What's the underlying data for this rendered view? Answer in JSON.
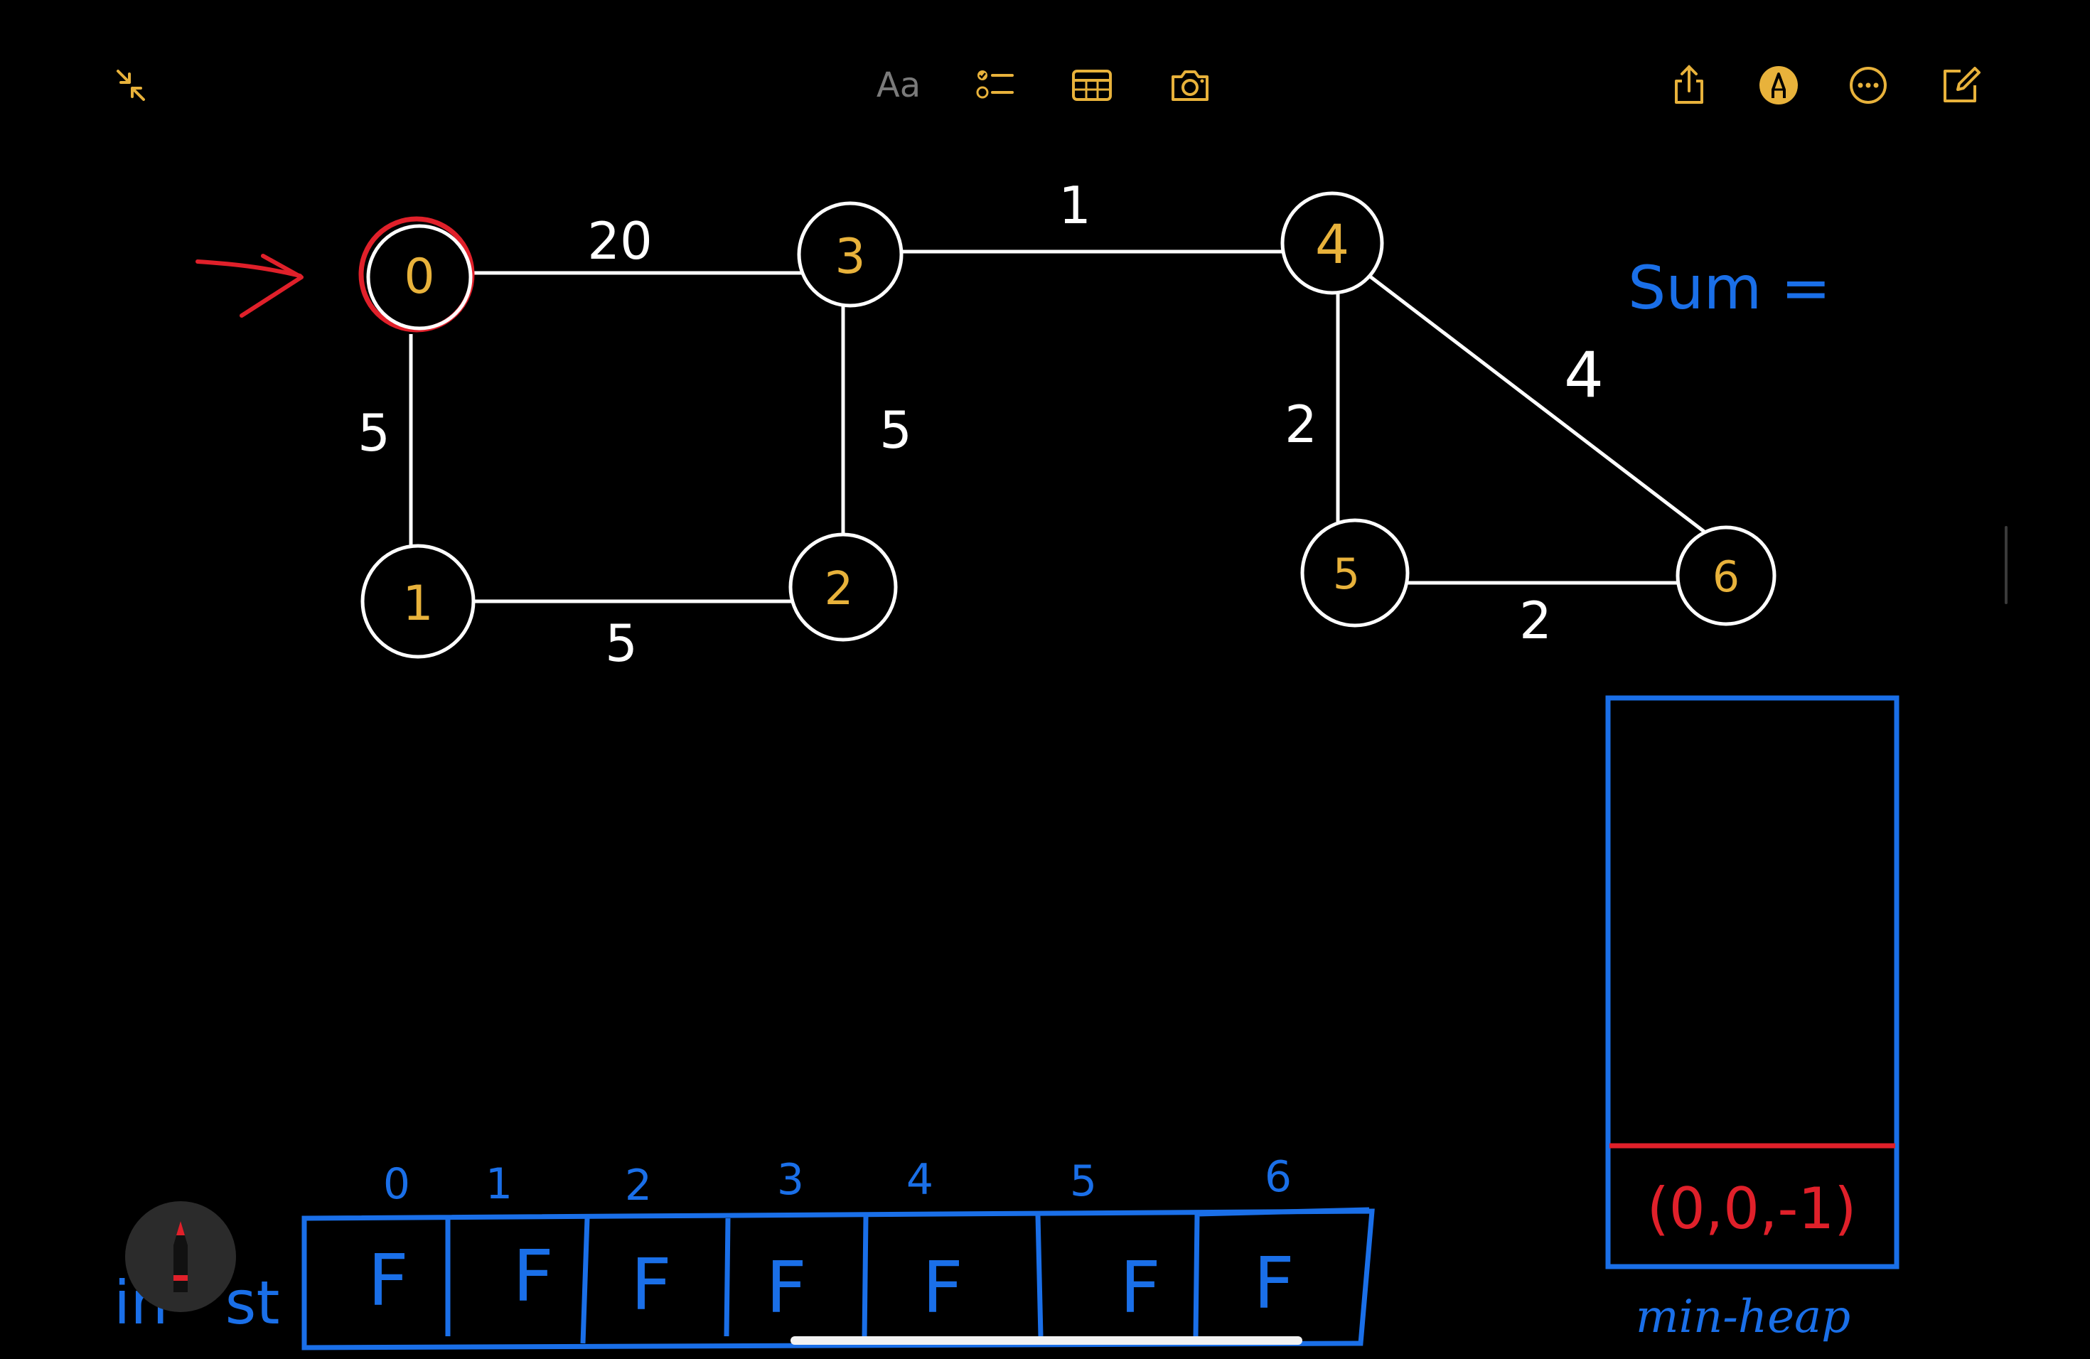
{
  "toolbar": {
    "collapse_icon": "collapse-arrows-icon",
    "format_label": "Aa",
    "checklist_icon": "checklist-icon",
    "table_icon": "table-icon",
    "camera_icon": "camera-icon",
    "share_icon": "share-icon",
    "markup_icon": "pen-markup-icon",
    "more_icon": "ellipsis-circle-icon",
    "compose_icon": "compose-icon"
  },
  "colors": {
    "accent": "#e8b23b",
    "node_label": "#e8b23b",
    "ink_white": "#ffffff",
    "ink_blue": "#1a6fe8",
    "ink_red": "#e0202a"
  },
  "graph": {
    "nodes": [
      {
        "id": "node-0",
        "label": "0"
      },
      {
        "id": "node-1",
        "label": "1"
      },
      {
        "id": "node-2",
        "label": "2"
      },
      {
        "id": "node-3",
        "label": "3"
      },
      {
        "id": "node-4",
        "label": "4"
      },
      {
        "id": "node-5",
        "label": "5"
      },
      {
        "id": "node-6",
        "label": "6"
      }
    ],
    "edges": [
      {
        "from": "0",
        "to": "3",
        "weight": "20"
      },
      {
        "from": "3",
        "to": "4",
        "weight": "1"
      },
      {
        "from": "0",
        "to": "1",
        "weight": "5"
      },
      {
        "from": "3",
        "to": "2",
        "weight": "5"
      },
      {
        "from": "1",
        "to": "2",
        "weight": "5"
      },
      {
        "from": "4",
        "to": "5",
        "weight": "2"
      },
      {
        "from": "4",
        "to": "6",
        "weight": "4"
      },
      {
        "from": "5",
        "to": "6",
        "weight": "2"
      }
    ]
  },
  "sum_label": "Sum =",
  "array": {
    "label": "in   st",
    "indices": [
      "0",
      "1",
      "2",
      "3",
      "4",
      "5",
      "6"
    ],
    "values": [
      "F",
      "F",
      "F",
      "F",
      "F",
      "F",
      "F"
    ]
  },
  "heap": {
    "label": "min-heap",
    "entries": [
      "(0,0,-1)"
    ]
  }
}
